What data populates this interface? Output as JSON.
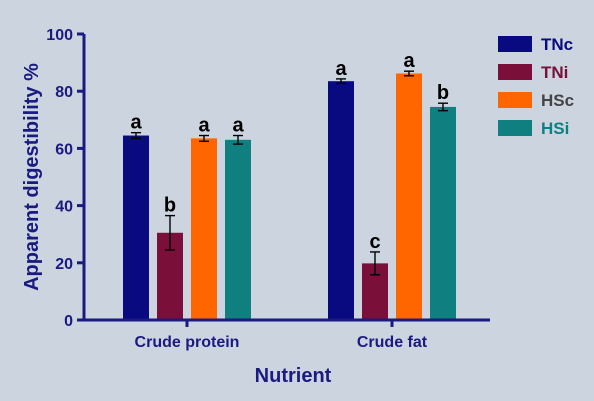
{
  "chart_data": {
    "type": "bar",
    "title": "",
    "xlabel": "Nutrient",
    "ylabel": "Apparent digestibility %",
    "ylim": [
      0,
      100
    ],
    "yticks": [
      0,
      20,
      40,
      60,
      80,
      100
    ],
    "categories": [
      "Crude protein",
      "Crude fat"
    ],
    "series": [
      {
        "name": "TNc",
        "color": "#0a0a80",
        "values": [
          64.5,
          83.5
        ],
        "errors": [
          1.0,
          0.8
        ],
        "labels": [
          "a",
          "a"
        ]
      },
      {
        "name": "TNi",
        "color": "#7a0f3a",
        "values": [
          30.5,
          19.8
        ],
        "errors": [
          6.0,
          4.0
        ],
        "labels": [
          "b",
          "c"
        ]
      },
      {
        "name": "HSc",
        "color": "#ff6600",
        "values": [
          63.5,
          86.2
        ],
        "errors": [
          1.0,
          0.8
        ],
        "labels": [
          "a",
          "a"
        ]
      },
      {
        "name": "HSi",
        "color": "#0f7f7f",
        "values": [
          63.0,
          74.5
        ],
        "errors": [
          1.5,
          1.3
        ],
        "labels": [
          "a",
          "b"
        ]
      }
    ],
    "legend_position": "top-right",
    "grid": false,
    "axis_color": "#1a1a80"
  }
}
